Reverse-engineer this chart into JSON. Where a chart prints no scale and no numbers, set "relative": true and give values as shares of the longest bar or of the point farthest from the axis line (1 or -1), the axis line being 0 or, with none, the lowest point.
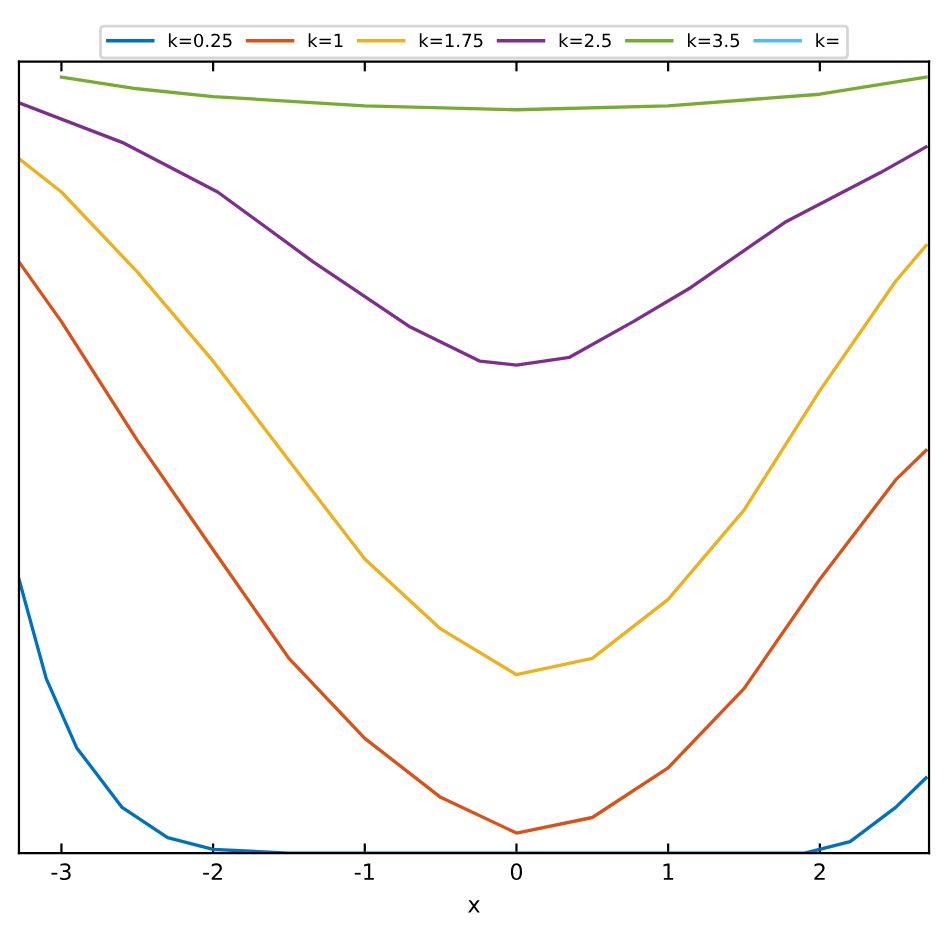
{
  "chart_data": {
    "type": "line",
    "relative": true,
    "xlabel": "x",
    "xlim": [
      -3.28,
      2.72
    ],
    "xticks": [
      -3,
      -2,
      -1,
      0,
      1,
      2
    ],
    "legend": "top",
    "grid": false,
    "marker": "none",
    "line_style": "solid",
    "series": [
      {
        "name": "k=0.25",
        "color": "#0072bd",
        "x": [
          -3.28,
          -3.1,
          -2.9,
          -2.6,
          -2.3,
          -2,
          -1.5,
          0,
          1.5,
          1.9,
          2.2,
          2.5,
          2.7
        ],
        "values": [
          0.353,
          0.225,
          0.136,
          0.059,
          0.02,
          0.005,
          0,
          0,
          0,
          0,
          0.015,
          0.059,
          0.097
        ]
      },
      {
        "name": "k=1",
        "color": "#d95319",
        "x": [
          -3.28,
          -3,
          -2.5,
          -2,
          -1.5,
          -1,
          -0.5,
          0,
          0.5,
          1,
          1.5,
          2,
          2.5,
          2.7
        ],
        "values": [
          0.762,
          0.685,
          0.532,
          0.391,
          0.251,
          0.148,
          0.072,
          0.026,
          0.046,
          0.11,
          0.212,
          0.353,
          0.481,
          0.519
        ]
      },
      {
        "name": "k=1.75",
        "color": "#edb120",
        "x": [
          -3.28,
          -3,
          -2.5,
          -2,
          -1.5,
          -1,
          -0.5,
          0,
          0.5,
          1,
          1.5,
          2,
          2.5,
          2.7
        ],
        "values": [
          0.895,
          0.852,
          0.749,
          0.634,
          0.506,
          0.379,
          0.289,
          0.23,
          0.251,
          0.327,
          0.442,
          0.596,
          0.737,
          0.783
        ]
      },
      {
        "name": "k=2.5",
        "color": "#7e2f8e",
        "x": [
          -3.28,
          -2.6,
          -1.97,
          -1.34,
          -0.7,
          -0.24,
          0,
          0.35,
          0.77,
          1.15,
          1.77,
          2.4,
          2.7
        ],
        "values": [
          0.967,
          0.916,
          0.852,
          0.762,
          0.678,
          0.634,
          0.629,
          0.639,
          0.685,
          0.729,
          0.813,
          0.877,
          0.91
        ]
      },
      {
        "name": "k=3.5",
        "color": "#77ac30",
        "x": [
          -3.0,
          -2.5,
          -2,
          -1,
          0,
          1,
          2,
          2.7
        ],
        "values": [
          1.0,
          0.985,
          0.975,
          0.963,
          0.958,
          0.963,
          0.978,
          1.0
        ]
      },
      {
        "name": "k=",
        "color": "#4dbeee"
      }
    ]
  }
}
